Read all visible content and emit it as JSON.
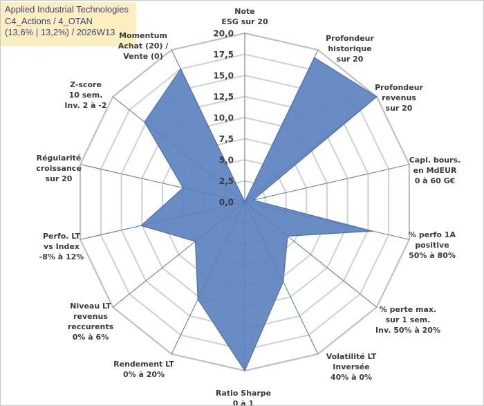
{
  "chart_data": {
    "type": "radar",
    "title_lines": [
      "Applied Industrial Technologies",
      "C4_Actions / 4_OTAN",
      "(13,6% | 13,2%) / 2026W13"
    ],
    "axis_min": 0,
    "axis_max": 20,
    "tick_step": 2.5,
    "tick_labels": [
      "0,0",
      "2,5",
      "5,0",
      "7,5",
      "10,0",
      "12,5",
      "15,0",
      "17,5",
      "20,0"
    ],
    "grid": true,
    "categories": [
      {
        "label": [
          "Note",
          "ESG sur 20"
        ],
        "value": 0
      },
      {
        "label": [
          "Profondeur",
          "historique",
          "sur 20"
        ],
        "value": 19
      },
      {
        "label": [
          "Profondeur",
          "revenus",
          "sur 20"
        ],
        "value": 20
      },
      {
        "label": [
          "Capi. bours.",
          "en MdEUR",
          "0 à 60 G€"
        ],
        "value": 1
      },
      {
        "label": [
          "% perfo 1A",
          "positive",
          "50% à 80%"
        ],
        "value": 15.5
      },
      {
        "label": [
          "% perte max.",
          "sur 1 sem.",
          "Inv. 50% à 20%"
        ],
        "value": 6.5
      },
      {
        "label": [
          "Volatilité LT",
          "Inversée",
          "40% à 0%"
        ],
        "value": 10.5
      },
      {
        "label": [
          "Ratio Sharpe",
          "0 à 1"
        ],
        "value": 20
      },
      {
        "label": [
          "Rendement LT",
          "0% à 20%"
        ],
        "value": 12.8
      },
      {
        "label": [
          "Niveau LT",
          "revenus",
          "reccurents",
          "0% à 6%"
        ],
        "value": 7.5
      },
      {
        "label": [
          "Perfo. LT",
          "vs Index",
          "-8% à 12%"
        ],
        "value": 12.6
      },
      {
        "label": [
          "Régularité",
          "croissance",
          "sur 20"
        ],
        "value": 7.5
      },
      {
        "label": [
          "Z-score",
          "10 sem.",
          "Inv. 2 à -2"
        ],
        "value": 15.2
      },
      {
        "label": [
          "Momentum",
          "Achat (20) /",
          "Vente (0)"
        ],
        "value": 17.5
      }
    ],
    "series_color": "#5a7fbf",
    "series_opacity": 0.9
  }
}
